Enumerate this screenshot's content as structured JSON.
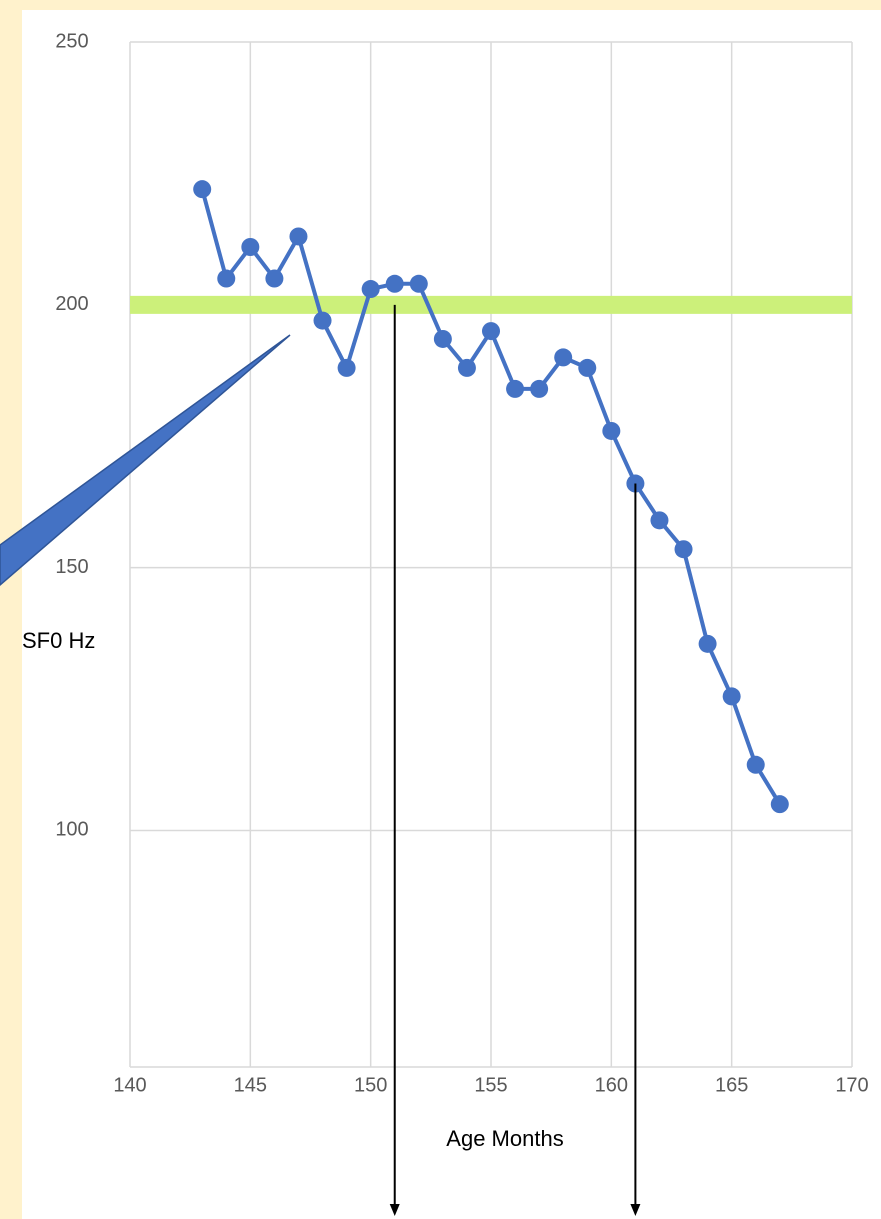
{
  "chart_data": {
    "type": "line",
    "x": [
      143,
      144,
      145,
      146,
      147,
      148,
      149,
      150,
      151,
      152,
      153,
      154,
      155,
      156,
      157,
      158,
      159,
      160,
      161,
      162,
      163,
      164,
      165,
      166,
      167
    ],
    "series": [
      {
        "name": "SF0",
        "color": "#4472c4",
        "values": [
          222,
          205,
          211,
          205,
          213,
          197,
          188,
          203,
          204,
          204,
          193.5,
          188,
          195,
          184,
          184,
          190,
          188,
          176,
          166,
          159,
          153.5,
          135.5,
          125.5,
          112.5,
          105
        ]
      }
    ],
    "xlim": [
      140,
      170
    ],
    "xticks": [
      140,
      145,
      150,
      155,
      160,
      165,
      170
    ],
    "ylim": [
      55,
      250
    ],
    "yticks": [
      100,
      150,
      200,
      250
    ],
    "grid": true,
    "reference_line": {
      "value": 200,
      "color": "#ccf07a"
    },
    "arrows_x": [
      151,
      161
    ],
    "annotations": [
      "SF0 Hz",
      "Age Months"
    ]
  }
}
